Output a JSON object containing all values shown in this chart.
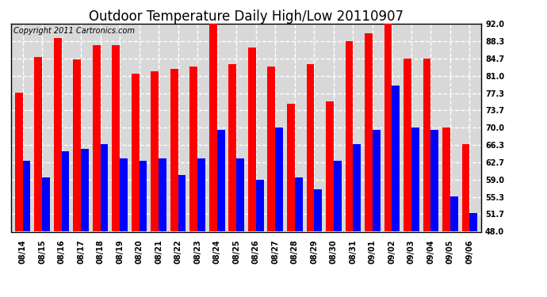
{
  "title": "Outdoor Temperature Daily High/Low 20110907",
  "copyright": "Copyright 2011 Cartronics.com",
  "dates": [
    "08/14",
    "08/15",
    "08/16",
    "08/17",
    "08/18",
    "08/19",
    "08/20",
    "08/21",
    "08/22",
    "08/23",
    "08/24",
    "08/25",
    "08/26",
    "08/27",
    "08/28",
    "08/29",
    "08/30",
    "08/31",
    "09/01",
    "09/02",
    "09/03",
    "09/04",
    "09/05",
    "09/06"
  ],
  "highs": [
    77.5,
    85.0,
    89.0,
    84.5,
    87.5,
    87.5,
    81.5,
    82.0,
    82.5,
    83.0,
    92.0,
    83.5,
    87.0,
    83.0,
    75.0,
    83.5,
    75.5,
    88.3,
    90.0,
    92.0,
    84.7,
    84.7,
    70.0,
    66.5
  ],
  "lows": [
    63.0,
    59.5,
    65.0,
    65.5,
    66.5,
    63.5,
    63.0,
    63.5,
    60.0,
    63.5,
    69.5,
    63.5,
    59.0,
    70.0,
    59.5,
    57.0,
    63.0,
    66.5,
    69.5,
    79.0,
    70.0,
    69.5,
    55.5,
    52.0
  ],
  "high_color": "#ff0000",
  "low_color": "#0000ff",
  "bg_color": "#ffffff",
  "plot_bg_color": "#ffffff",
  "grid_color": "#999999",
  "yticks": [
    48.0,
    51.7,
    55.3,
    59.0,
    62.7,
    66.3,
    70.0,
    73.7,
    77.3,
    81.0,
    84.7,
    88.3,
    92.0
  ],
  "ymin": 48.0,
  "ymax": 92.0,
  "title_fontsize": 12,
  "copyright_fontsize": 7,
  "tick_fontsize": 7,
  "bar_width": 0.4
}
